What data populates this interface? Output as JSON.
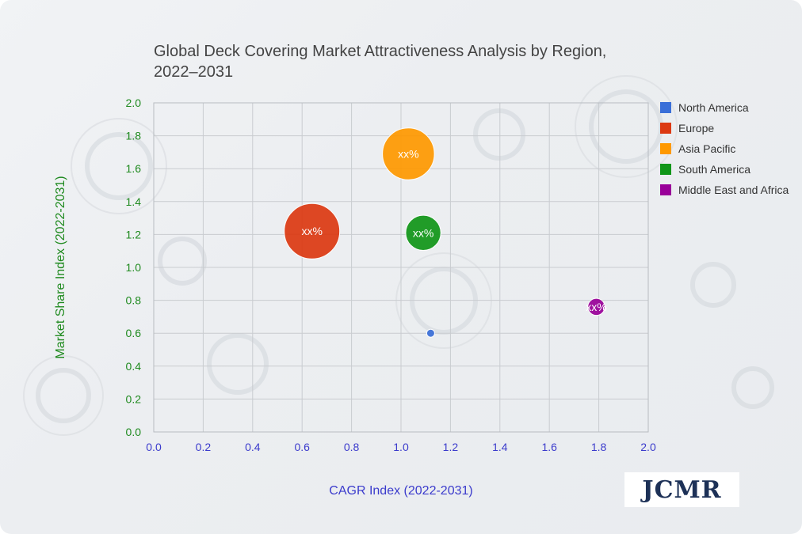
{
  "chart_data": {
    "type": "bubble",
    "title": "Global Deck Covering Market Attractiveness Analysis by Region, 2022–2031",
    "xlabel": "CAGR Index (2022-2031)",
    "ylabel": "Market Share Index (2022-2031)",
    "xlim": [
      0.0,
      2.0
    ],
    "ylim": [
      0.0,
      2.0
    ],
    "x_ticks": [
      "0.0",
      "0.2",
      "0.4",
      "0.6",
      "0.8",
      "1.0",
      "1.2",
      "1.4",
      "1.6",
      "1.8",
      "2.0"
    ],
    "y_ticks": [
      "0.0",
      "0.2",
      "0.4",
      "0.6",
      "0.8",
      "1.0",
      "1.2",
      "1.4",
      "1.6",
      "1.8",
      "2.0"
    ],
    "grid": true,
    "legend_position": "right",
    "series": [
      {
        "name": "North America",
        "color": "#3a6fd8",
        "x": 1.12,
        "y": 0.6,
        "size": 1,
        "label": ""
      },
      {
        "name": "Europe",
        "color": "#dc3912",
        "x": 0.64,
        "y": 1.22,
        "size": 10,
        "label": "xx%"
      },
      {
        "name": "Asia Pacific",
        "color": "#ff9900",
        "x": 1.03,
        "y": 1.69,
        "size": 9,
        "label": "xx%"
      },
      {
        "name": "South America",
        "color": "#109618",
        "x": 1.09,
        "y": 1.21,
        "size": 5,
        "label": "xx%"
      },
      {
        "name": "Middle East and Africa",
        "color": "#990099",
        "x": 1.79,
        "y": 0.76,
        "size": 2,
        "label": "xx%"
      }
    ]
  },
  "logo": {
    "text": "JCMR"
  }
}
